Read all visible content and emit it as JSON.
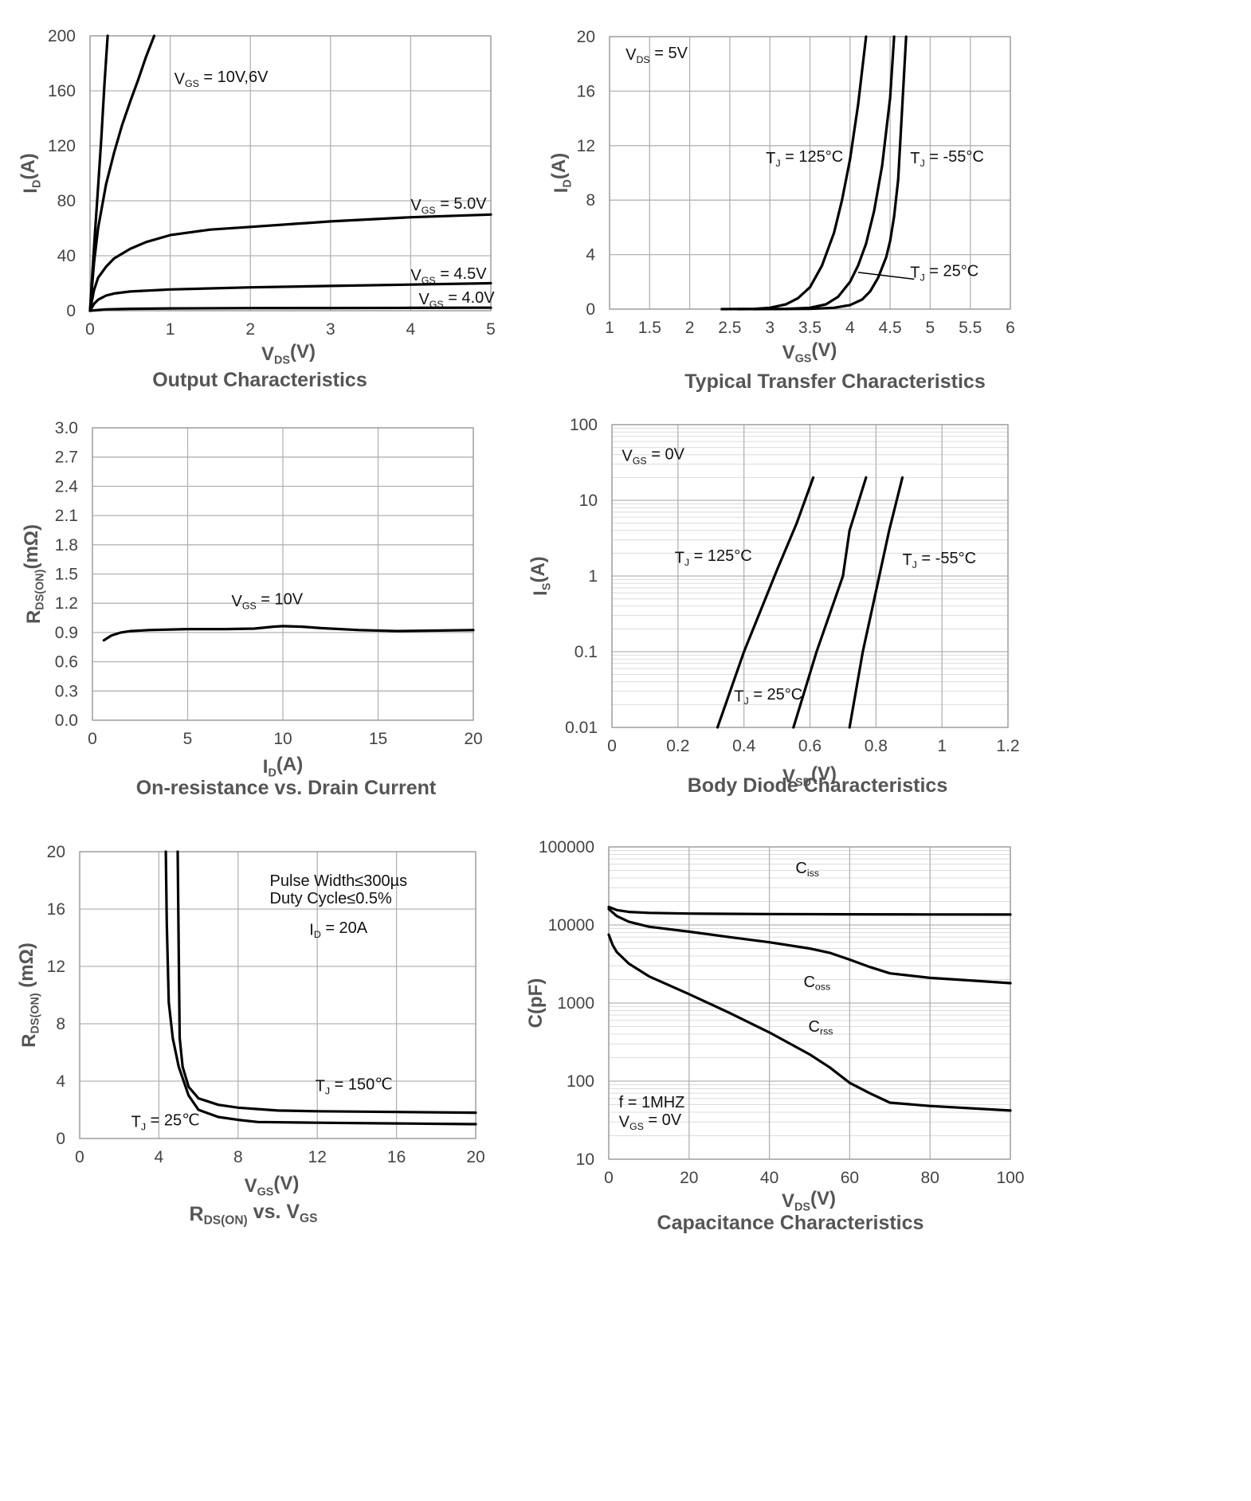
{
  "chart_data": [
    {
      "id": "output",
      "type": "line",
      "title": "Output Characteristics",
      "xlabel": {
        "main": "V",
        "sub": "DS",
        "tail": "(V)"
      },
      "ylabel": {
        "main": "I",
        "sub": "D",
        "tail": "(A)"
      },
      "xlim": [
        0,
        5
      ],
      "ylim": [
        0,
        200
      ],
      "xticks": [
        "0",
        "1",
        "2",
        "3",
        "4",
        "5"
      ],
      "yticks": [
        "0",
        "40",
        "80",
        "120",
        "160",
        "200"
      ],
      "x_scale": "linear",
      "y_scale": "linear",
      "grid": true,
      "series": [
        {
          "x": [
            0,
            0.03,
            0.06,
            0.1,
            0.14,
            0.18,
            0.22
          ],
          "y": [
            0,
            28,
            55,
            90,
            125,
            165,
            200
          ]
        },
        {
          "x": [
            0,
            0.05,
            0.1,
            0.2,
            0.3,
            0.4,
            0.5,
            0.6,
            0.7,
            0.8
          ],
          "y": [
            0,
            35,
            60,
            92,
            115,
            135,
            152,
            168,
            185,
            200
          ]
        },
        {
          "x": [
            0,
            0.05,
            0.1,
            0.2,
            0.3,
            0.5,
            0.7,
            1.0,
            1.5,
            2.0,
            3.0,
            4.0,
            5.0
          ],
          "y": [
            0,
            15,
            24,
            32,
            38,
            45,
            50,
            55,
            59,
            61,
            65,
            68,
            70
          ]
        },
        {
          "x": [
            0,
            0.05,
            0.1,
            0.2,
            0.3,
            0.5,
            1.0,
            2.0,
            3.0,
            4.0,
            5.0
          ],
          "y": [
            0,
            5,
            8,
            11,
            12.5,
            14,
            15.5,
            17,
            18,
            19,
            20
          ]
        },
        {
          "x": [
            0,
            0.2,
            0.5,
            1.0,
            2.0,
            3.0,
            4.0,
            5.0
          ],
          "y": [
            0,
            1,
            1.4,
            1.7,
            1.9,
            2.0,
            2.1,
            2.2
          ]
        }
      ],
      "annotations": [
        {
          "main": "V",
          "sub": "GS",
          "tail": " = 10V,6V"
        },
        {
          "main": "V",
          "sub": "GS",
          "tail": " = 5.0V"
        },
        {
          "main": "V",
          "sub": "GS",
          "tail": " = 4.5V"
        },
        {
          "main": "V",
          "sub": "GS",
          "tail": " = 4.0V"
        }
      ]
    },
    {
      "id": "transfer",
      "type": "line",
      "title": "Typical Transfer Characteristics",
      "xlabel": {
        "main": "V",
        "sub": "GS",
        "tail": "(V)"
      },
      "ylabel": {
        "main": "I",
        "sub": "D",
        "tail": "(A)"
      },
      "xlim": [
        1,
        6
      ],
      "ylim": [
        0,
        20
      ],
      "xticks": [
        "1",
        "1.5",
        "2",
        "2.5",
        "3",
        "3.5",
        "4",
        "4.5",
        "5",
        "5.5",
        "6"
      ],
      "yticks": [
        "0",
        "4",
        "8",
        "12",
        "16",
        "20"
      ],
      "x_scale": "linear",
      "y_scale": "linear",
      "grid": true,
      "series": [
        {
          "name": "T_J = 125°C",
          "x": [
            2.4,
            2.8,
            3.0,
            3.2,
            3.35,
            3.5,
            3.65,
            3.8,
            3.9,
            4.0,
            4.1,
            4.2
          ],
          "y": [
            0,
            0.02,
            0.1,
            0.35,
            0.8,
            1.6,
            3.2,
            5.6,
            8.0,
            11.0,
            15.0,
            20.0
          ]
        },
        {
          "name": "T_J = 25°C",
          "x": [
            2.6,
            3.2,
            3.5,
            3.7,
            3.85,
            4.0,
            4.1,
            4.2,
            4.3,
            4.4,
            4.5,
            4.55
          ],
          "y": [
            0,
            0.02,
            0.1,
            0.35,
            0.9,
            2.0,
            3.2,
            4.8,
            7.2,
            10.5,
            15.5,
            20.0
          ]
        },
        {
          "name": "T_J = -55°C",
          "x": [
            2.8,
            3.5,
            3.8,
            4.0,
            4.15,
            4.25,
            4.35,
            4.45,
            4.5,
            4.55,
            4.6,
            4.7
          ],
          "y": [
            0,
            0.02,
            0.1,
            0.3,
            0.7,
            1.3,
            2.3,
            3.8,
            5.0,
            6.8,
            9.5,
            20.0
          ]
        }
      ],
      "annotations": [
        {
          "main": "V",
          "sub": "DS",
          "tail": " = 5V"
        },
        {
          "main": "T",
          "sub": "J",
          "tail": " = 125°C"
        },
        {
          "main": "T",
          "sub": "J",
          "tail": " = -55°C"
        },
        {
          "main": "T",
          "sub": "J",
          "tail": " = 25°C"
        }
      ]
    },
    {
      "id": "onres",
      "type": "line",
      "title": "On-resistance vs. Drain Current",
      "xlabel": {
        "main": "I",
        "sub": "D",
        "tail": "(A)"
      },
      "ylabel": {
        "main": "R",
        "sub": "DS(ON)",
        "tail": "(mΩ)"
      },
      "xlim": [
        0,
        20
      ],
      "ylim": [
        0,
        3.0
      ],
      "xticks": [
        "0",
        "5",
        "10",
        "15",
        "20"
      ],
      "yticks": [
        "0.0",
        "0.3",
        "0.6",
        "0.9",
        "1.2",
        "1.5",
        "1.8",
        "2.1",
        "2.4",
        "2.7",
        "3.0"
      ],
      "x_scale": "linear",
      "y_scale": "linear",
      "grid": true,
      "series": [
        {
          "x": [
            0.6,
            1.0,
            1.5,
            2.0,
            3.0,
            5.0,
            7.0,
            8.5,
            9.5,
            10.0,
            11.0,
            12.0,
            14.0,
            16.0,
            18.0,
            20.0
          ],
          "y": [
            0.82,
            0.87,
            0.9,
            0.915,
            0.925,
            0.935,
            0.935,
            0.94,
            0.96,
            0.965,
            0.96,
            0.945,
            0.925,
            0.915,
            0.92,
            0.925
          ]
        }
      ],
      "annotations": [
        {
          "main": "V",
          "sub": "GS",
          "tail": " = 10V"
        }
      ]
    },
    {
      "id": "diode",
      "type": "line",
      "title": "Body Diode Characteristics",
      "xlabel": {
        "main": "V",
        "sub": "SD",
        "tail": "(V)"
      },
      "ylabel": {
        "main": "I",
        "sub": "S",
        "tail": "(A)"
      },
      "xlim": [
        0,
        1.2
      ],
      "ylim": [
        0.01,
        100
      ],
      "xticks": [
        "0",
        "0.2",
        "0.4",
        "0.6",
        "0.8",
        "1",
        "1.2"
      ],
      "yticks": [
        "0.01",
        "0.1",
        "1",
        "10",
        "100"
      ],
      "x_scale": "linear",
      "y_scale": "log",
      "grid": true,
      "series": [
        {
          "name": "T_J = 125°C",
          "x": [
            0.32,
            0.4,
            0.5,
            0.56,
            0.61
          ],
          "y": [
            0.01,
            0.1,
            1.2,
            5,
            20
          ]
        },
        {
          "name": "T_J = 25°C",
          "x": [
            0.55,
            0.62,
            0.7,
            0.72,
            0.77
          ],
          "y": [
            0.01,
            0.1,
            1.0,
            4,
            20
          ]
        },
        {
          "name": "T_J = -55°C",
          "x": [
            0.72,
            0.76,
            0.81,
            0.84,
            0.88
          ],
          "y": [
            0.01,
            0.1,
            1.0,
            4,
            20
          ]
        }
      ],
      "annotations": [
        {
          "main": "V",
          "sub": "GS",
          "tail": " = 0V"
        },
        {
          "main": "T",
          "sub": "J",
          "tail": " = 125°C"
        },
        {
          "main": "T",
          "sub": "J",
          "tail": " = -55°C"
        },
        {
          "main": "T",
          "sub": "J",
          "tail": " = 25°C"
        }
      ]
    },
    {
      "id": "rdsvgs",
      "type": "line",
      "title": {
        "main": "R",
        "sub": "DS(ON)",
        "tail": " vs. V",
        "sub2": "GS"
      },
      "xlabel": {
        "main": "V",
        "sub": "GS",
        "tail": "(V)"
      },
      "ylabel": {
        "main": "R",
        "sub": "DS(ON)",
        "tail": " (mΩ)"
      },
      "xlim": [
        0,
        20
      ],
      "ylim": [
        0,
        20
      ],
      "xticks": [
        "0",
        "4",
        "8",
        "12",
        "16",
        "20"
      ],
      "yticks": [
        "0",
        "4",
        "8",
        "12",
        "16",
        "20"
      ],
      "x_scale": "linear",
      "y_scale": "linear",
      "grid": true,
      "series": [
        {
          "name": "T_J = 25°C",
          "x": [
            4.35,
            4.4,
            4.5,
            4.7,
            5.0,
            5.5,
            6.0,
            7.0,
            8.0,
            9.0,
            12.0,
            16.0,
            20.0
          ],
          "y": [
            20,
            15,
            9.5,
            7.0,
            5.0,
            3.0,
            2.0,
            1.5,
            1.3,
            1.15,
            1.1,
            1.05,
            1.0
          ]
        },
        {
          "name": "T_J = 150°C",
          "x": [
            4.95,
            5.0,
            5.05,
            5.2,
            5.5,
            6.0,
            7.0,
            8.0,
            10.0,
            12.0,
            16.0,
            20.0
          ],
          "y": [
            20,
            13,
            7.0,
            5.0,
            3.6,
            2.8,
            2.35,
            2.15,
            1.95,
            1.9,
            1.85,
            1.8
          ]
        }
      ],
      "annotations": [
        {
          "text": "Pulse Width≤300µs"
        },
        {
          "text": "Duty Cycle≤0.5%"
        },
        {
          "main": "I",
          "sub": "D",
          "tail": " = 20A"
        },
        {
          "main": "T",
          "sub": "J",
          "tail": " = 150℃"
        },
        {
          "main": "T",
          "sub": "J",
          "tail": " = 25℃"
        }
      ]
    },
    {
      "id": "cap",
      "type": "line",
      "title": "Capacitance Characteristics",
      "xlabel": {
        "main": "V",
        "sub": "DS",
        "tail": "(V)"
      },
      "ylabel": {
        "main": "C(pF)",
        "sub": "",
        "tail": ""
      },
      "xlim": [
        0,
        100
      ],
      "ylim": [
        10,
        100000
      ],
      "xticks": [
        "0",
        "20",
        "40",
        "60",
        "80",
        "100"
      ],
      "yticks": [
        "10",
        "100",
        "1000",
        "10000",
        "100000"
      ],
      "x_scale": "linear",
      "y_scale": "log",
      "grid": true,
      "series": [
        {
          "name": "C_iss",
          "x": [
            0,
            2,
            5,
            10,
            20,
            40,
            60,
            80,
            100
          ],
          "y": [
            17000,
            15500,
            14700,
            14300,
            14000,
            13800,
            13700,
            13650,
            13600
          ]
        },
        {
          "name": "C_oss",
          "x": [
            0,
            2,
            5,
            10,
            20,
            30,
            40,
            50,
            55,
            60,
            65,
            70,
            80,
            90,
            100
          ],
          "y": [
            16000,
            13000,
            11000,
            9500,
            8200,
            7000,
            6000,
            5000,
            4400,
            3600,
            2900,
            2400,
            2100,
            1950,
            1800
          ]
        },
        {
          "name": "C_rss",
          "x": [
            0,
            1,
            2,
            5,
            10,
            20,
            30,
            40,
            50,
            55,
            60,
            65,
            70,
            80,
            100
          ],
          "y": [
            7500,
            5500,
            4500,
            3200,
            2200,
            1300,
            750,
            420,
            220,
            150,
            95,
            70,
            53,
            48,
            42
          ]
        }
      ],
      "annotations": [
        {
          "main": "C",
          "sub": "iss",
          "tail": ""
        },
        {
          "main": "C",
          "sub": "oss",
          "tail": ""
        },
        {
          "main": "C",
          "sub": "rss",
          "tail": ""
        },
        {
          "text": "f = 1MHZ"
        },
        {
          "main": "V",
          "sub": "GS",
          "tail": " = 0V"
        }
      ]
    }
  ]
}
